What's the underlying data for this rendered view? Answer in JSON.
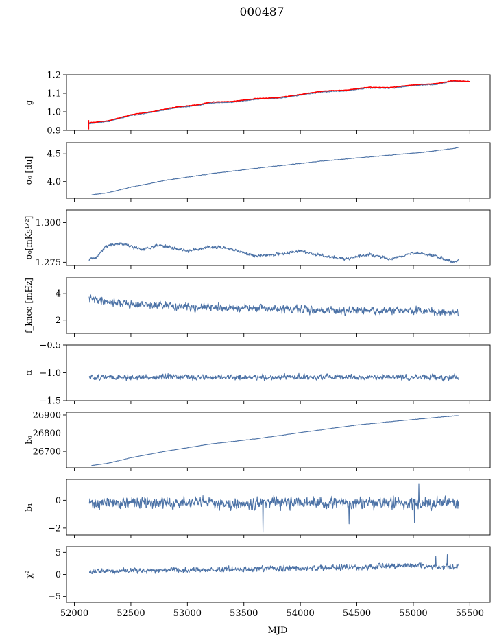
{
  "figure": {
    "title": "000487",
    "xlabel": "MJD"
  },
  "chart_data": {
    "type": "line",
    "title": "000487",
    "xlabel": "MJD",
    "xlim": [
      51930,
      55680
    ],
    "xticks": [
      52000,
      52500,
      53000,
      53500,
      54000,
      54500,
      55000,
      55500
    ],
    "xticklabels": [
      "52000",
      "52500",
      "53000",
      "53500",
      "54000",
      "54500",
      "55000",
      "55500"
    ],
    "panels": [
      {
        "name": "g",
        "ylabel": "g",
        "ylim": [
          0.9,
          1.2
        ],
        "yticks": [
          0.9,
          1.0,
          1.1,
          1.2
        ],
        "yticklabels": [
          "0.9",
          "1.0",
          "1.1",
          "1.2"
        ],
        "x_range": [
          52120,
          55500
        ],
        "trend": [
          [
            52120,
            0.935
          ],
          [
            52300,
            0.948
          ],
          [
            52500,
            0.98
          ],
          [
            52700,
            0.998
          ],
          [
            52900,
            1.022
          ],
          [
            53100,
            1.035
          ],
          [
            53200,
            1.048
          ],
          [
            53400,
            1.052
          ],
          [
            53600,
            1.067
          ],
          [
            53800,
            1.072
          ],
          [
            54000,
            1.09
          ],
          [
            54200,
            1.108
          ],
          [
            54400,
            1.113
          ],
          [
            54600,
            1.128
          ],
          [
            54800,
            1.127
          ],
          [
            55000,
            1.142
          ],
          [
            55200,
            1.148
          ],
          [
            55350,
            1.165
          ],
          [
            55500,
            1.165
          ]
        ],
        "noise": 0.003,
        "seed": 11,
        "overlay": {
          "color": "#ff0000",
          "trend": [
            [
              52120,
              0.94
            ],
            [
              52300,
              0.952
            ],
            [
              52500,
              0.984
            ],
            [
              52700,
              1.002
            ],
            [
              52900,
              1.026
            ],
            [
              53100,
              1.039
            ],
            [
              53200,
              1.052
            ],
            [
              53400,
              1.056
            ],
            [
              53600,
              1.071
            ],
            [
              53800,
              1.076
            ],
            [
              54000,
              1.094
            ],
            [
              54200,
              1.112
            ],
            [
              54400,
              1.117
            ],
            [
              54600,
              1.132
            ],
            [
              54800,
              1.131
            ],
            [
              55000,
              1.146
            ],
            [
              55200,
              1.152
            ],
            [
              55350,
              1.168
            ],
            [
              55500,
              1.165
            ]
          ],
          "noise": 0.002,
          "seed": 5,
          "x_range": [
            52120,
            55500
          ]
        }
      },
      {
        "name": "sigma0",
        "ylabel": "σ₀ [du]",
        "ylim": [
          3.7,
          4.7
        ],
        "yticks": [
          4.0,
          4.5
        ],
        "yticklabels": [
          "4.0",
          "4.5"
        ],
        "x_range": [
          52150,
          55400
        ],
        "trend": [
          [
            52150,
            3.76
          ],
          [
            52300,
            3.8
          ],
          [
            52500,
            3.9
          ],
          [
            52800,
            4.02
          ],
          [
            53200,
            4.14
          ],
          [
            53700,
            4.26
          ],
          [
            54200,
            4.37
          ],
          [
            54700,
            4.46
          ],
          [
            55100,
            4.53
          ],
          [
            55400,
            4.61
          ]
        ],
        "noise": 0.006,
        "seed": 21
      },
      {
        "name": "sigma0_mks",
        "ylabel": "σ₀[mKs¹ᐟ²]",
        "ylim": [
          1.273,
          1.308
        ],
        "yticks": [
          1.275,
          1.3
        ],
        "yticklabels": [
          "1.275",
          "1.300"
        ],
        "x_range": [
          52130,
          55400
        ],
        "trend": [
          [
            52130,
            1.277
          ],
          [
            52200,
            1.278
          ],
          [
            52270,
            1.285
          ],
          [
            52400,
            1.287
          ],
          [
            52600,
            1.283
          ],
          [
            52750,
            1.286
          ],
          [
            53000,
            1.282
          ],
          [
            53200,
            1.285
          ],
          [
            53400,
            1.283
          ],
          [
            53600,
            1.279
          ],
          [
            53800,
            1.28
          ],
          [
            54000,
            1.282
          ],
          [
            54200,
            1.279
          ],
          [
            54400,
            1.277
          ],
          [
            54600,
            1.28
          ],
          [
            54800,
            1.277
          ],
          [
            55000,
            1.281
          ],
          [
            55200,
            1.279
          ],
          [
            55350,
            1.275
          ],
          [
            55400,
            1.276
          ]
        ],
        "noise": 0.0012,
        "seed": 31
      },
      {
        "name": "fknee",
        "ylabel": "f_knee [mHz]",
        "ylim": [
          1.0,
          5.2
        ],
        "yticks": [
          2,
          4
        ],
        "yticklabels": [
          "2",
          "4"
        ],
        "x_range": [
          52130,
          55400
        ],
        "trend": [
          [
            52130,
            3.6
          ],
          [
            52500,
            3.2
          ],
          [
            53000,
            3.0
          ],
          [
            53500,
            2.9
          ],
          [
            54000,
            2.8
          ],
          [
            54500,
            2.7
          ],
          [
            55000,
            2.7
          ],
          [
            55400,
            2.6
          ]
        ],
        "noise": 0.35,
        "seed": 41
      },
      {
        "name": "alpha",
        "ylabel": "α",
        "ylim": [
          -1.5,
          -0.5
        ],
        "yticks": [
          -1.5,
          -1.0,
          -0.5
        ],
        "yticklabels": [
          "−1.5",
          "−1.0",
          "−0.5"
        ],
        "x_range": [
          52130,
          55400
        ],
        "trend": [
          [
            52130,
            -1.08
          ],
          [
            55400,
            -1.08
          ]
        ],
        "noise": 0.06,
        "seed": 51
      },
      {
        "name": "b0",
        "ylabel": "b₀",
        "ylim": [
          26610,
          26915
        ],
        "yticks": [
          26700,
          26800,
          26900
        ],
        "yticklabels": [
          "26700",
          "26800",
          "26900"
        ],
        "x_range": [
          52150,
          55400
        ],
        "trend": [
          [
            52150,
            26622
          ],
          [
            52300,
            26635
          ],
          [
            52500,
            26665
          ],
          [
            52800,
            26700
          ],
          [
            53200,
            26740
          ],
          [
            53600,
            26768
          ],
          [
            54000,
            26803
          ],
          [
            54500,
            26845
          ],
          [
            55000,
            26875
          ],
          [
            55400,
            26897
          ]
        ],
        "noise": 1.2,
        "seed": 61
      },
      {
        "name": "b1",
        "ylabel": "b₁",
        "ylim": [
          -2.5,
          1.5
        ],
        "yticks": [
          -2,
          0
        ],
        "yticklabels": [
          "−2",
          "0"
        ],
        "x_range": [
          52130,
          55400
        ],
        "trend": [
          [
            52130,
            -0.2
          ],
          [
            55400,
            -0.2
          ]
        ],
        "noise": 0.5,
        "seed": 71,
        "spikes": [
          [
            53670,
            -2.3
          ],
          [
            54430,
            -1.7
          ],
          [
            55010,
            -1.6
          ],
          [
            55050,
            1.2
          ]
        ]
      },
      {
        "name": "chi2",
        "ylabel": "χ²",
        "ylim": [
          -6.3,
          6.3
        ],
        "yticks": [
          -5,
          0,
          5
        ],
        "yticklabels": [
          "−5",
          "0",
          "5"
        ],
        "x_range": [
          52130,
          55400
        ],
        "trend": [
          [
            52130,
            0.6
          ],
          [
            52500,
            0.9
          ],
          [
            53000,
            1.0
          ],
          [
            53500,
            1.2
          ],
          [
            54000,
            1.4
          ],
          [
            54500,
            1.6
          ],
          [
            55000,
            2.0
          ],
          [
            55400,
            1.8
          ]
        ],
        "noise": 0.8,
        "seed": 81,
        "spikes": [
          [
            55300,
            4.5
          ],
          [
            55200,
            4.2
          ]
        ]
      }
    ]
  }
}
